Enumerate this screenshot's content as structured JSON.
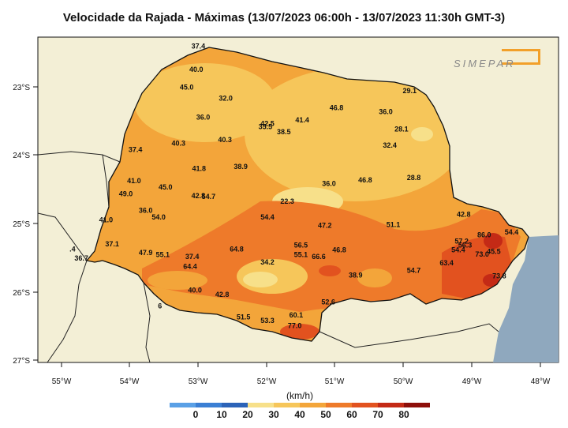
{
  "title": "Velocidade da Rajada - Máximas (13/07/2023 06:00h - 13/07/2023 11:30h GMT-3)",
  "logo_text": "SIMEPAR",
  "unit_label": "(km/h)",
  "colorbar": {
    "ticks": [
      "0",
      "10",
      "20",
      "30",
      "40",
      "50",
      "60",
      "70",
      "80"
    ],
    "colors": [
      "#5aa0e6",
      "#3b7fd4",
      "#2c63b8",
      "#f7e08a",
      "#f6c65a",
      "#f3a53a",
      "#ee7a2a",
      "#e2521f",
      "#c42a16",
      "#8e0f0b"
    ]
  },
  "axes": {
    "lon_labels": [
      "55°W",
      "54°W",
      "53°W",
      "52°W",
      "51°W",
      "50°W",
      "49°W",
      "48°W"
    ],
    "lat_labels": [
      "23°S",
      "24°S",
      "25°S",
      "26°S",
      "27°S"
    ]
  },
  "colors": {
    "ocean": "#8fa8be",
    "land_outside": "#f3efd6",
    "border": "#111111"
  },
  "stations": [
    {
      "label": "37.4",
      "lon": -53.0,
      "lat": -22.44
    },
    {
      "label": "40.0",
      "lon": -53.03,
      "lat": -22.78
    },
    {
      "label": "45.0",
      "lon": -53.17,
      "lat": -23.04
    },
    {
      "label": "32.0",
      "lon": -52.6,
      "lat": -23.2
    },
    {
      "label": "29.1",
      "lon": -49.91,
      "lat": -23.09
    },
    {
      "label": "46.8",
      "lon": -50.98,
      "lat": -23.34
    },
    {
      "label": "36.0",
      "lon": -50.26,
      "lat": -23.4
    },
    {
      "label": "41.4",
      "lon": -51.48,
      "lat": -23.52
    },
    {
      "label": "42.5",
      "lon": -51.99,
      "lat": -23.57
    },
    {
      "label": "35.5",
      "lon": -52.02,
      "lat": -23.62
    },
    {
      "label": "36.0",
      "lon": -52.93,
      "lat": -23.48
    },
    {
      "label": "38.5",
      "lon": -51.75,
      "lat": -23.69
    },
    {
      "label": "28.1",
      "lon": -50.03,
      "lat": -23.65
    },
    {
      "label": "40.3",
      "lon": -53.29,
      "lat": -23.86
    },
    {
      "label": "40.3",
      "lon": -52.61,
      "lat": -23.81
    },
    {
      "label": "32.4",
      "lon": -50.2,
      "lat": -23.89
    },
    {
      "label": "37.4",
      "lon": -53.92,
      "lat": -23.95
    },
    {
      "label": "41.8",
      "lon": -52.99,
      "lat": -24.23
    },
    {
      "label": "38.9",
      "lon": -52.38,
      "lat": -24.2
    },
    {
      "label": "28.8",
      "lon": -49.85,
      "lat": -24.36
    },
    {
      "label": "46.8",
      "lon": -50.56,
      "lat": -24.4
    },
    {
      "label": "36.0",
      "lon": -51.09,
      "lat": -24.45
    },
    {
      "label": "41.0",
      "lon": -53.94,
      "lat": -24.41
    },
    {
      "label": "45.0",
      "lon": -53.48,
      "lat": -24.5
    },
    {
      "label": "42.8",
      "lon": -53.0,
      "lat": -24.63
    },
    {
      "label": "54.7",
      "lon": -52.85,
      "lat": -24.64
    },
    {
      "label": "49.0",
      "lon": -54.06,
      "lat": -24.6
    },
    {
      "label": "22.3",
      "lon": -51.7,
      "lat": -24.71
    },
    {
      "label": "36.0",
      "lon": -53.77,
      "lat": -24.84
    },
    {
      "label": "54.0",
      "lon": -53.58,
      "lat": -24.94
    },
    {
      "label": "54.4",
      "lon": -51.99,
      "lat": -24.94
    },
    {
      "label": "42.8",
      "lon": -49.12,
      "lat": -24.9
    },
    {
      "label": "41.0",
      "lon": -54.35,
      "lat": -24.98
    },
    {
      "label": "47.2",
      "lon": -51.15,
      "lat": -25.06
    },
    {
      "label": "51.1",
      "lon": -50.15,
      "lat": -25.05
    },
    {
      "label": "86.0",
      "lon": -48.82,
      "lat": -25.2
    },
    {
      "label": "54.4",
      "lon": -48.42,
      "lat": -25.16
    },
    {
      "label": "37.1",
      "lon": -54.26,
      "lat": -25.33
    },
    {
      "label": "57.2",
      "lon": -49.15,
      "lat": -25.29
    },
    {
      "label": "56.3",
      "lon": -49.1,
      "lat": -25.35
    },
    {
      "label": "56.5",
      "lon": -51.5,
      "lat": -25.35
    },
    {
      "label": "64.8",
      "lon": -52.44,
      "lat": -25.41
    },
    {
      "label": "46.8",
      "lon": -50.94,
      "lat": -25.42
    },
    {
      "label": "54.4",
      "lon": -49.2,
      "lat": -25.42
    },
    {
      "label": "73.0",
      "lon": -48.85,
      "lat": -25.48
    },
    {
      "label": "45.5",
      "lon": -48.68,
      "lat": -25.44
    },
    {
      "label": ".4",
      "lon": -54.84,
      "lat": -25.41
    },
    {
      "label": "47.9",
      "lon": -53.77,
      "lat": -25.46
    },
    {
      "label": "55.1",
      "lon": -53.52,
      "lat": -25.49
    },
    {
      "label": "37.4",
      "lon": -53.09,
      "lat": -25.52
    },
    {
      "label": "55.1",
      "lon": -51.5,
      "lat": -25.49
    },
    {
      "label": "66.6",
      "lon": -51.24,
      "lat": -25.52
    },
    {
      "label": "36.7",
      "lon": -54.71,
      "lat": -25.54
    },
    {
      "label": "34.2",
      "lon": -51.99,
      "lat": -25.6
    },
    {
      "label": "63.4",
      "lon": -49.37,
      "lat": -25.61
    },
    {
      "label": "64.4",
      "lon": -53.12,
      "lat": -25.66
    },
    {
      "label": "54.7",
      "lon": -49.85,
      "lat": -25.72
    },
    {
      "label": "38.9",
      "lon": -50.7,
      "lat": -25.79
    },
    {
      "label": "73.8",
      "lon": -48.6,
      "lat": -25.8
    },
    {
      "label": "40.0",
      "lon": -53.05,
      "lat": -26.01
    },
    {
      "label": "42.8",
      "lon": -52.65,
      "lat": -26.07
    },
    {
      "label": "52.6",
      "lon": -51.1,
      "lat": -26.18
    },
    {
      "label": "6",
      "lon": -53.56,
      "lat": -26.24
    },
    {
      "label": "51.5",
      "lon": -52.34,
      "lat": -26.4
    },
    {
      "label": "60.1",
      "lon": -51.57,
      "lat": -26.37
    },
    {
      "label": "53.3",
      "lon": -51.99,
      "lat": -26.45
    },
    {
      "label": "77.0",
      "lon": -51.59,
      "lat": -26.53
    }
  ]
}
